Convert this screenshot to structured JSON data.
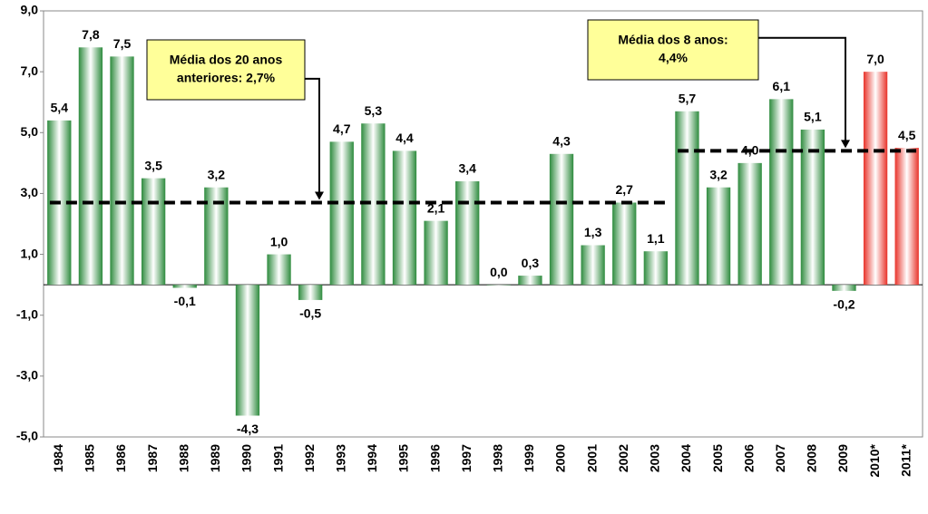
{
  "chart_data": {
    "type": "bar",
    "categories": [
      "1984",
      "1985",
      "1986",
      "1987",
      "1988",
      "1989",
      "1990",
      "1991",
      "1992",
      "1993",
      "1994",
      "1995",
      "1996",
      "1997",
      "1998",
      "1999",
      "2000",
      "2001",
      "2002",
      "2003",
      "2004",
      "2005",
      "2006",
      "2007",
      "2008",
      "2009",
      "2010*",
      "2011*"
    ],
    "values": [
      5.4,
      7.8,
      7.5,
      3.5,
      -0.1,
      3.2,
      -4.3,
      1.0,
      -0.5,
      4.7,
      5.3,
      4.4,
      2.1,
      3.4,
      0.0,
      0.3,
      4.3,
      1.3,
      2.7,
      1.1,
      5.7,
      3.2,
      4.0,
      6.1,
      5.1,
      -0.2,
      7.0,
      4.5
    ],
    "value_labels": [
      "5,4",
      "7,8",
      "7,5",
      "3,5",
      "-0,1",
      "3,2",
      "-4,3",
      "1,0",
      "-0,5",
      "4,7",
      "5,3",
      "4,4",
      "2,1",
      "3,4",
      "0,0",
      "0,3",
      "4,3",
      "1,3",
      "2,7",
      "1,1",
      "5,7",
      "3,2",
      "4,0",
      "6,1",
      "5,1",
      "-0,2",
      "7,0",
      "4,5"
    ],
    "colors": [
      "#2e8b3e",
      "#2e8b3e",
      "#2e8b3e",
      "#2e8b3e",
      "#2e8b3e",
      "#2e8b3e",
      "#2e8b3e",
      "#2e8b3e",
      "#2e8b3e",
      "#2e8b3e",
      "#2e8b3e",
      "#2e8b3e",
      "#2e8b3e",
      "#2e8b3e",
      "#2e8b3e",
      "#2e8b3e",
      "#2e8b3e",
      "#2e8b3e",
      "#2e8b3e",
      "#2e8b3e",
      "#2e8b3e",
      "#2e8b3e",
      "#2e8b3e",
      "#2e8b3e",
      "#2e8b3e",
      "#2e8b3e",
      "#e8332a",
      "#e8332a"
    ],
    "ylim": [
      -5,
      9
    ],
    "yticks": [
      {
        "value": 9,
        "label": "9,0"
      },
      {
        "value": 7,
        "label": "7,0"
      },
      {
        "value": 5,
        "label": "5,0"
      },
      {
        "value": 3,
        "label": "3,0"
      },
      {
        "value": 1,
        "label": "1,0"
      },
      {
        "value": -1,
        "label": "-1,0"
      },
      {
        "value": -3,
        "label": "-3,0"
      },
      {
        "value": -5,
        "label": "-5,0"
      }
    ],
    "annotations": [
      {
        "lines": [
          "Média dos 20 anos",
          "anteriores: 2,7%"
        ],
        "value": 2.7,
        "from": "1984",
        "to": "2003"
      },
      {
        "lines": [
          "Média dos 8 anos:",
          "4,4%"
        ],
        "value": 4.4,
        "from": "2004",
        "to": "2011*"
      }
    ]
  }
}
